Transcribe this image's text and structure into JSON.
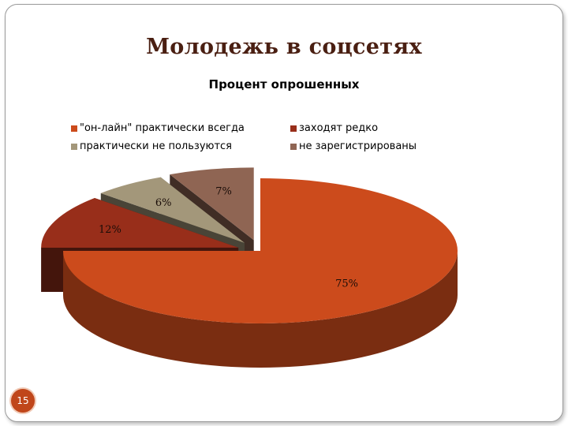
{
  "slide": {
    "title": "Молодежь в соцсетях",
    "page_number": "15",
    "badge_color": "#c0461a"
  },
  "chart_data": {
    "type": "pie",
    "title": "Процент опрошенных",
    "three_d": true,
    "exploded": true,
    "legend_position": "top",
    "slices": [
      {
        "label": "\"он-лайн\" практически всегда",
        "value": 75,
        "data_label": "75%",
        "color": "#cc4b1c"
      },
      {
        "label": "заходят редко",
        "value": 12,
        "data_label": "12%",
        "color": "#982e1a"
      },
      {
        "label": "практически не пользуются",
        "value": 6,
        "data_label": "6%",
        "color": "#a3977a"
      },
      {
        "label": "не зарегистрированы",
        "value": 7,
        "data_label": "7%",
        "color": "#8f6553"
      }
    ]
  }
}
